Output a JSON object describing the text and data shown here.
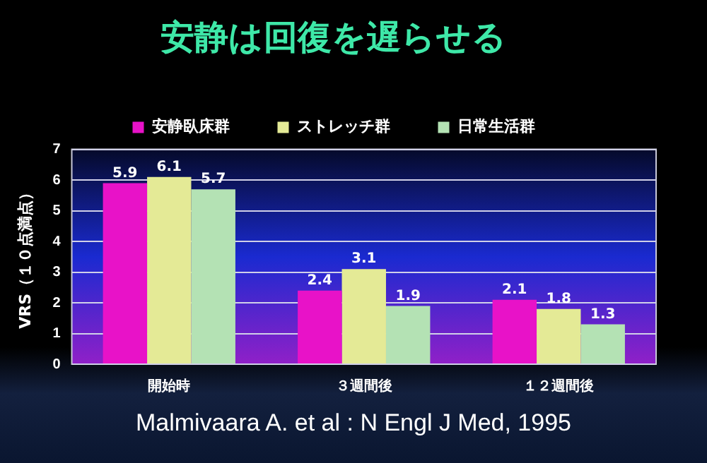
{
  "chart_data": {
    "type": "bar",
    "title": "安静は回復を遅らせる",
    "ylabel": "VRS（１０点満点）",
    "categories": [
      "開始時",
      "３週間後",
      "１２週間後"
    ],
    "series": [
      {
        "name": "安静臥床群",
        "color": "#e812c8",
        "values": [
          5.9,
          2.4,
          2.1
        ]
      },
      {
        "name": "ストレッチ群",
        "color": "#e4ea96",
        "values": [
          6.1,
          3.1,
          1.8
        ]
      },
      {
        "name": "日常生活群",
        "color": "#b4e2b4",
        "values": [
          5.7,
          1.9,
          1.3
        ]
      }
    ],
    "ylim": [
      0,
      7
    ],
    "yticks": [
      0,
      1,
      2,
      3,
      4,
      5,
      6,
      7
    ],
    "grid": "y",
    "legend": "top",
    "data_labels": true,
    "annotations": [
      "Malmivaara A. et al : N Engl J Med, 1995"
    ]
  }
}
